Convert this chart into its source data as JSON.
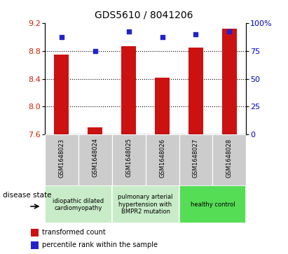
{
  "title": "GDS5610 / 8041206",
  "samples": [
    "GSM1648023",
    "GSM1648024",
    "GSM1648025",
    "GSM1648026",
    "GSM1648027",
    "GSM1648028"
  ],
  "transformed_counts": [
    8.75,
    7.7,
    8.87,
    8.42,
    8.85,
    9.12
  ],
  "percentile_ranks": [
    87,
    75,
    92,
    87,
    90,
    92
  ],
  "ylim_left": [
    7.6,
    9.2
  ],
  "ylim_right": [
    0,
    100
  ],
  "yticks_left": [
    7.6,
    8.0,
    8.4,
    8.8,
    9.2
  ],
  "yticks_right": [
    0,
    25,
    50,
    75,
    100
  ],
  "ytick_labels_right": [
    "0",
    "25",
    "50",
    "75",
    "100%"
  ],
  "bar_color": "#cc1111",
  "dot_color": "#2222cc",
  "bar_bottom": 7.6,
  "disease_groups": [
    {
      "label": "idiopathic dilated\ncardiomyopathy",
      "color": "#c8ecc8",
      "samples": [
        0,
        1
      ]
    },
    {
      "label": "pulmonary arterial\nhypertension with\nBMPR2 mutation",
      "color": "#c8ecc8",
      "samples": [
        2,
        3
      ]
    },
    {
      "label": "healthy control",
      "color": "#55dd55",
      "samples": [
        4,
        5
      ]
    }
  ],
  "disease_state_label": "disease state",
  "legend_bar_label": "transformed count",
  "legend_dot_label": "percentile rank within the sample",
  "bg_color": "#ffffff",
  "plot_bg_color": "#ffffff",
  "tick_label_color_left": "#cc2200",
  "tick_label_color_right": "#0000cc",
  "grid_color": "#000000",
  "sample_bg_color": "#cccccc",
  "sample_border_color": "#aaaaaa",
  "title_fontsize": 10,
  "axis_fontsize": 8,
  "sample_fontsize": 6,
  "disease_fontsize": 6,
  "legend_fontsize": 7,
  "disease_state_fontsize": 7.5,
  "bar_width": 0.45
}
